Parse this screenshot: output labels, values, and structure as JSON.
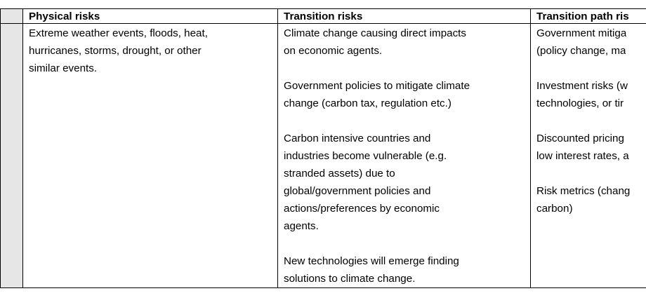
{
  "table": {
    "header": [
      "Physical risks",
      "Transition risks",
      "Transition path ris"
    ],
    "rows": [
      [
        [
          [
            "Extreme weather events, floods, heat,",
            "hurricanes, storms, drought, or other",
            "similar events."
          ]
        ],
        [
          [
            "Climate change causing direct impacts",
            "on economic agents."
          ],
          [
            "Government policies to mitigate climate",
            "change (carbon tax, regulation etc.)"
          ],
          [
            "Carbon intensive countries and",
            "industries become vulnerable (e.g.",
            "stranded assets) due to",
            "global/government policies and",
            "actions/preferences by economic",
            "agents."
          ],
          [
            "New technologies will emerge finding",
            "solutions to climate change."
          ]
        ],
        [
          [
            "Government mitiga",
            "(policy change, ma"
          ],
          [
            "Investment risks (w",
            "technologies, or tir"
          ],
          [
            "Discounted pricing",
            "low interest rates, a"
          ],
          [
            "Risk metrics (chang",
            "carbon)"
          ]
        ]
      ]
    ]
  }
}
